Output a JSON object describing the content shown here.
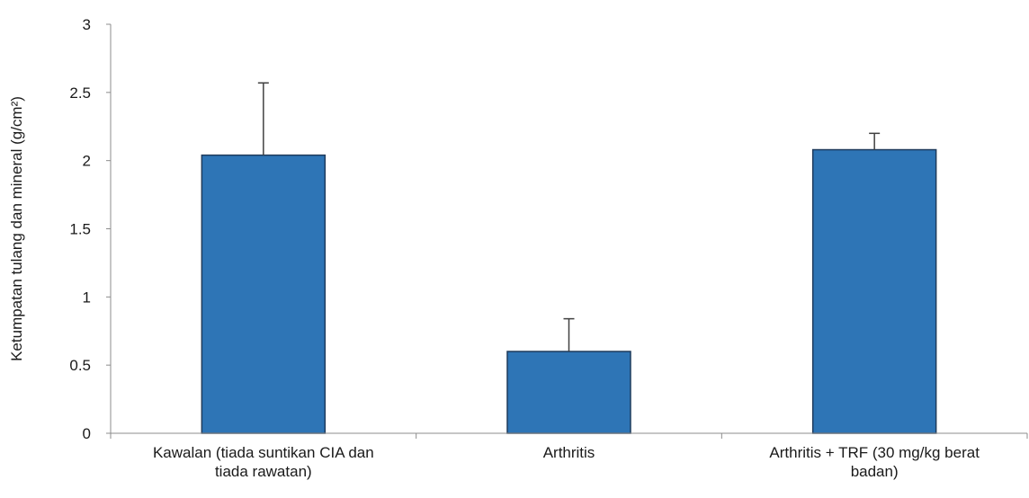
{
  "chart_data": {
    "type": "bar",
    "categories": [
      [
        "Kawalan (tiada suntikan CIA dan",
        "tiada rawatan)"
      ],
      [
        "Arthritis"
      ],
      [
        "Arthritis + TRF (30 mg/kg berat",
        "badan)"
      ]
    ],
    "values": [
      2.04,
      0.6,
      2.08
    ],
    "errors": [
      0.53,
      0.24,
      0.12
    ],
    "ylabel": "Ketumpatan tulang dan mineral (g/cm²)",
    "ylim": [
      0,
      3
    ],
    "yticks": [
      0,
      0.5,
      1,
      1.5,
      2,
      2.5,
      3
    ],
    "ytick_labels": [
      "0",
      "0.5",
      "1",
      "1.5",
      "2",
      "2.5",
      "3"
    ],
    "bar_color": "#2e75b6",
    "grid": false,
    "legend": "none"
  }
}
